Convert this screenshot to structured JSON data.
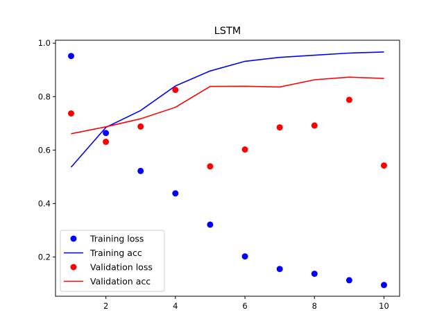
{
  "chart_data": {
    "type": "line",
    "title": "LSTM",
    "xlabel": "",
    "ylabel": "",
    "x": [
      1,
      2,
      3,
      4,
      5,
      6,
      7,
      8,
      9,
      10
    ],
    "xlim": [
      0.55,
      10.45
    ],
    "ylim": [
      0.053,
      1.011
    ],
    "xticks": [
      2,
      4,
      6,
      8,
      10
    ],
    "yticks": [
      0.2,
      0.4,
      0.6,
      0.8,
      1.0
    ],
    "xtick_labels": [
      "2",
      "4",
      "6",
      "8",
      "10"
    ],
    "ytick_labels": [
      "0.2",
      "0.4",
      "0.6",
      "0.8",
      "1.0"
    ],
    "grid": false,
    "legend_position": "lower-left",
    "series": [
      {
        "name": "Training loss",
        "style": "points",
        "color": "#0000ff",
        "values": [
          0.952,
          0.664,
          0.522,
          0.438,
          0.321,
          0.202,
          0.155,
          0.137,
          0.113,
          0.095
        ]
      },
      {
        "name": "Training acc",
        "style": "line",
        "color": "#0000ff",
        "values": [
          0.536,
          0.685,
          0.748,
          0.84,
          0.896,
          0.932,
          0.947,
          0.955,
          0.963,
          0.967
        ]
      },
      {
        "name": "Validation loss",
        "style": "points",
        "color": "#ff0000",
        "values": [
          0.737,
          0.631,
          0.688,
          0.825,
          0.539,
          0.602,
          0.685,
          0.692,
          0.788,
          0.542
        ]
      },
      {
        "name": "Validation acc",
        "style": "line",
        "color": "#ff0000",
        "values": [
          0.661,
          0.687,
          0.717,
          0.76,
          0.838,
          0.839,
          0.836,
          0.863,
          0.873,
          0.868
        ]
      }
    ]
  }
}
